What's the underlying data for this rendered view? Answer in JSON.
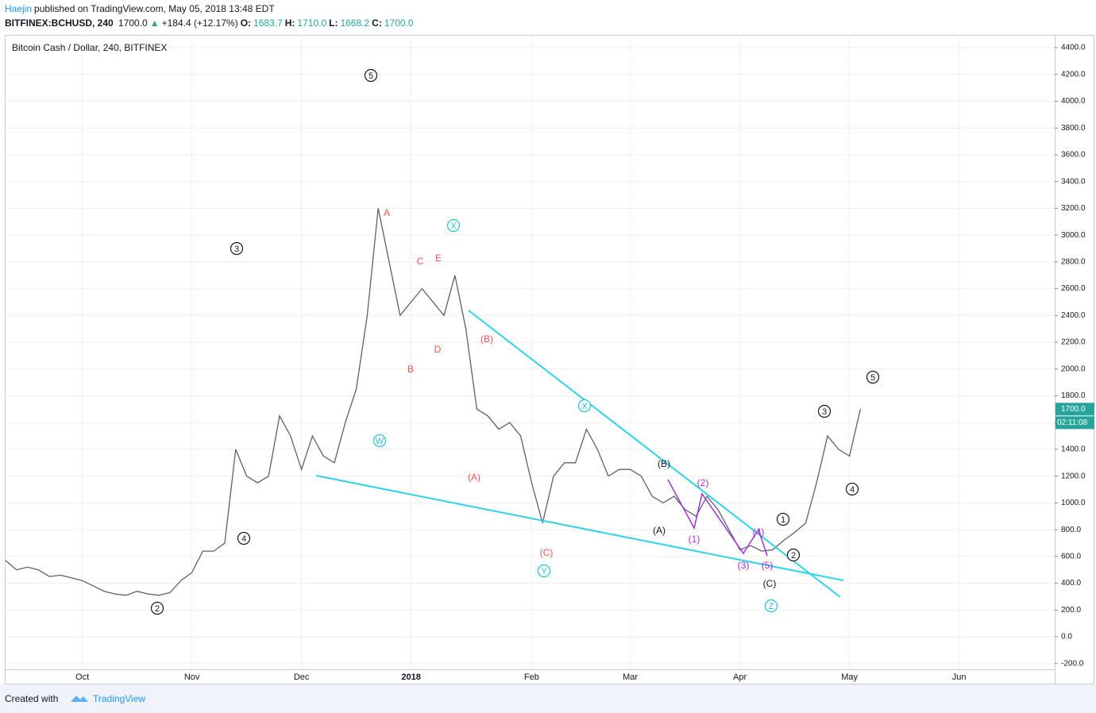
{
  "header": {
    "author": "Haejin",
    "published": "published on TradingView.com, May 05, 2018 13:48 EDT",
    "symbol": "BITFINEX:BCHUSD, 240",
    "price": "1700.0",
    "arrow": "▲",
    "change": "+184.4 (+12.17%)",
    "o_label": "O:",
    "open": "1683.7",
    "h_label": "H:",
    "high": "1710.0",
    "l_label": "L:",
    "low": "1668.2",
    "c_label": "C:",
    "close": "1700.0"
  },
  "chart_data": {
    "type": "line",
    "title": "Bitcoin Cash / Dollar, 240, BITFINEX",
    "color": "#5d606b",
    "grid": true,
    "countdown": "02:11:08",
    "categories": [
      null,
      null,
      null,
      null,
      null,
      null,
      null,
      "Oct",
      null,
      null,
      null,
      null,
      null,
      null,
      null,
      null,
      null,
      "Nov",
      null,
      null,
      null,
      null,
      null,
      null,
      null,
      null,
      null,
      "Dec",
      null,
      null,
      null,
      null,
      null,
      null,
      null,
      null,
      null,
      "2018",
      null,
      null,
      null,
      null,
      null,
      null,
      null,
      null,
      null,
      null,
      "Feb",
      null,
      null,
      null,
      null,
      null,
      null,
      null,
      null,
      "Mar",
      null,
      null,
      null,
      null,
      null,
      null,
      null,
      null,
      null,
      "Apr",
      null,
      null,
      null,
      null,
      null,
      null,
      null,
      null,
      null,
      "May",
      null,
      null,
      null,
      null,
      null,
      null,
      null,
      null,
      null,
      "Jun",
      null,
      null,
      null,
      null,
      null,
      null,
      null,
      null
    ],
    "values": [
      570,
      500,
      520,
      500,
      450,
      460,
      440,
      420,
      380,
      340,
      320,
      310,
      340,
      320,
      310,
      330,
      420,
      480,
      640,
      640,
      700,
      1400,
      1200,
      1150,
      1200,
      1650,
      1500,
      1250,
      1500,
      1350,
      1300,
      1600,
      1850,
      2400,
      3200,
      2800,
      2400,
      2500,
      2600,
      2500,
      2400,
      2700,
      2300,
      1700,
      1650,
      1550,
      1600,
      1500,
      1150,
      850,
      1200,
      1300,
      1300,
      1550,
      1400,
      1200,
      1250,
      1250,
      1200,
      1050,
      1000,
      1050,
      950,
      900,
      1050,
      950,
      800,
      650,
      680,
      640,
      650,
      720,
      780,
      850,
      1150,
      1500,
      1400,
      1350,
      1700,
      null,
      null,
      null,
      null,
      null,
      null,
      null,
      null,
      null,
      null,
      null,
      null,
      null,
      null,
      null,
      null,
      null
    ],
    "ylim": [
      -243,
      4495
    ],
    "yticks": [
      {
        "value": -200,
        "label": "-200.0"
      },
      {
        "value": 0,
        "label": "0.0"
      },
      {
        "value": 200,
        "label": "200.0"
      },
      {
        "value": 400,
        "label": "400.0"
      },
      {
        "value": 600,
        "label": "600.0"
      },
      {
        "value": 800,
        "label": "800.0"
      },
      {
        "value": 1000,
        "label": "1000.0"
      },
      {
        "value": 1200,
        "label": "1200.0"
      },
      {
        "value": 1400,
        "label": "1400.0"
      },
      {
        "value": 1600,
        "label": "1600.0"
      },
      {
        "value": 1800,
        "label": "1800.0"
      },
      {
        "value": 2000,
        "label": "2000.0"
      },
      {
        "value": 2200,
        "label": "2200.0"
      },
      {
        "value": 2400,
        "label": "2400.0"
      },
      {
        "value": 2600,
        "label": "2600.0"
      },
      {
        "value": 2800,
        "label": "2800.0"
      },
      {
        "value": 3000,
        "label": "3000.0"
      },
      {
        "value": 3200,
        "label": "3200.0"
      },
      {
        "value": 3400,
        "label": "3400.0"
      },
      {
        "value": 3600,
        "label": "3600.0"
      },
      {
        "value": 3800,
        "label": "3800.0"
      },
      {
        "value": 4000,
        "label": "4000.0"
      },
      {
        "value": 4200,
        "label": "4200.0"
      },
      {
        "value": 4400,
        "label": "4400.0"
      }
    ],
    "annotations": [
      {
        "text": "5",
        "color": "#131722",
        "circled": true
      },
      {
        "text": "3",
        "color": "#131722",
        "circled": true
      },
      {
        "text": "4",
        "color": "#131722",
        "circled": true
      },
      {
        "text": "2",
        "color": "#131722",
        "circled": true
      },
      {
        "text": "W",
        "color": "#22c1d6",
        "circled": true
      },
      {
        "text": "A",
        "color": "#ef5350",
        "circled": false
      },
      {
        "text": "B",
        "color": "#ef5350",
        "circled": false
      },
      {
        "text": "C",
        "color": "#ef5350",
        "circled": false
      },
      {
        "text": "D",
        "color": "#ef5350",
        "circled": false
      },
      {
        "text": "E",
        "color": "#ef5350",
        "circled": false
      },
      {
        "text": "X",
        "color": "#22c1d6",
        "circled": true
      },
      {
        "text": "(B)",
        "color": "#ef5350",
        "circled": false
      },
      {
        "text": "(A)",
        "color": "#ef5350",
        "circled": false
      },
      {
        "text": "(C)",
        "color": "#ef5350",
        "circled": false
      },
      {
        "text": "Y",
        "color": "#22c1d6",
        "circled": true
      },
      {
        "text": "X",
        "color": "#22c1d6",
        "circled": true
      },
      {
        "text": "(B)",
        "color": "#131722",
        "circled": false
      },
      {
        "text": "(A)",
        "color": "#131722",
        "circled": false
      },
      {
        "text": "(1)",
        "color": "#a330d1",
        "circled": false
      },
      {
        "text": "(2)",
        "color": "#a330d1",
        "circled": false
      },
      {
        "text": "(3)",
        "color": "#a330d1",
        "circled": false
      },
      {
        "text": "(4)",
        "color": "#a330d1",
        "circled": false
      },
      {
        "text": "(5)",
        "color": "#a330d1",
        "circled": false
      },
      {
        "text": "(C)",
        "color": "#131722",
        "circled": false
      },
      {
        "text": "Z",
        "color": "#22c1d6",
        "circled": true
      },
      {
        "text": "1",
        "color": "#131722",
        "circled": true
      },
      {
        "text": "2",
        "color": "#131722",
        "circled": true
      },
      {
        "text": "3",
        "color": "#131722",
        "circled": true
      },
      {
        "text": "4",
        "color": "#131722",
        "circled": true
      },
      {
        "text": "5",
        "color": "#131722",
        "circled": true
      }
    ]
  },
  "footer": {
    "created": "Created with",
    "brand": "TradingView"
  }
}
